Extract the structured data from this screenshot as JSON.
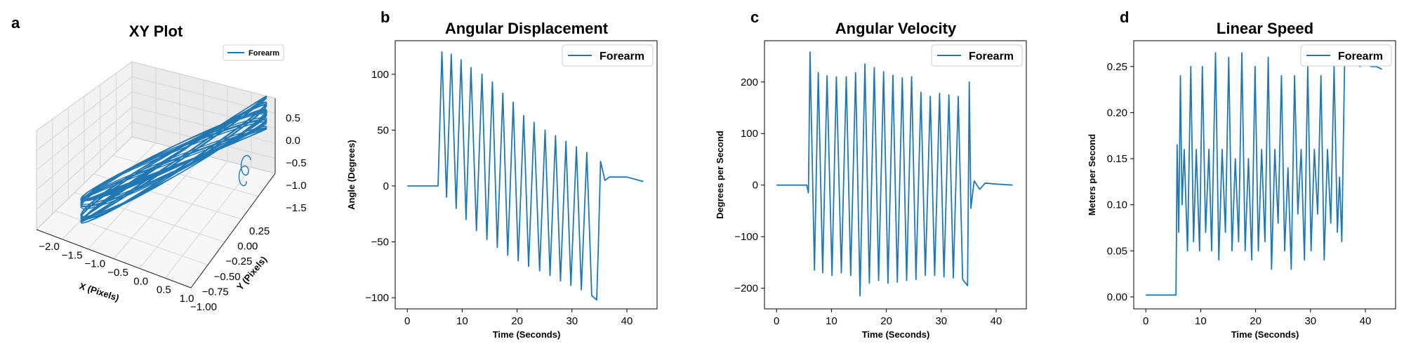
{
  "chart_data": [
    {
      "panel": "a",
      "type": "line",
      "title": "XY Plot",
      "xlabel": "X (Pixels)",
      "ylabel": "Y (Pixels)",
      "xticks": [
        "−2.0",
        "−1.5",
        "−1.0",
        "−0.5",
        "0.0",
        "0.5",
        "1.0"
      ],
      "yticks": [
        "0.25",
        "0.00",
        "−0.25",
        "−0.50",
        "−0.75",
        "−1.00"
      ],
      "zticks": [
        "0.5",
        "0.0",
        "−0.5",
        "−1.0",
        "−1.5"
      ],
      "xlim": [
        -2.0,
        1.0
      ],
      "ylim": [
        -1.0,
        0.25
      ],
      "zlim": [
        -1.5,
        0.5
      ],
      "series": [
        {
          "name": "Forearm",
          "color": "#1f77b4"
        }
      ],
      "legend": "top-right",
      "grid": true,
      "projection": "3d"
    },
    {
      "panel": "b",
      "type": "line",
      "title": "Angular Displacement",
      "xlabel": "Time (Seconds)",
      "ylabel": "Angle (Degrees)",
      "xlim": [
        -2.2,
        45.5
      ],
      "ylim": [
        -110,
        130
      ],
      "xticks": [
        0,
        10,
        20,
        30,
        40
      ],
      "yticks": [
        -100,
        -50,
        0,
        50,
        100
      ],
      "legend": "top-right",
      "series": [
        {
          "name": "Forearm",
          "color": "#1f77b4",
          "x": [
            0,
            5.6,
            6.3,
            7.15,
            8,
            8.9,
            9.8,
            10.7,
            11.6,
            12.6,
            13.6,
            14.5,
            15.5,
            16.4,
            17.4,
            18.3,
            19.3,
            20.2,
            21.2,
            22.1,
            23.1,
            24.1,
            25.1,
            26.0,
            27.0,
            27.9,
            28.9,
            29.8,
            30.8,
            31.7,
            32.7,
            33.6,
            34.5,
            34.8,
            35.2,
            36,
            36.8,
            38,
            40,
            41.5,
            43
          ],
          "y": [
            0,
            0,
            120,
            -10,
            118,
            -20,
            113,
            -30,
            106,
            -40,
            100,
            -48,
            93,
            -55,
            83,
            -62,
            75,
            -67,
            63,
            -72,
            57,
            -76,
            50,
            -80,
            45,
            -85,
            40,
            -89,
            35,
            -93,
            30,
            -98,
            -102,
            -55,
            22,
            5,
            8,
            8,
            8,
            6,
            4
          ]
        }
      ]
    },
    {
      "panel": "c",
      "type": "line",
      "title": "Angular Velocity",
      "xlabel": "Time (Seconds)",
      "ylabel": "Degrees per Second",
      "xlim": [
        -2.2,
        45.5
      ],
      "ylim": [
        -240,
        280
      ],
      "xticks": [
        0,
        10,
        20,
        30,
        40
      ],
      "yticks": [
        -200,
        -100,
        0,
        100,
        200
      ],
      "legend": "top-right",
      "series": [
        {
          "name": "Forearm",
          "color": "#1f77b4",
          "x": [
            0,
            3,
            5.5,
            5.8,
            6.1,
            6.9,
            7.6,
            8.4,
            9.2,
            10.1,
            10.9,
            11.8,
            12.7,
            13.5,
            14.4,
            15.2,
            16.1,
            16.9,
            17.8,
            18.6,
            19.5,
            20.3,
            21.2,
            22.0,
            22.9,
            23.7,
            24.6,
            25.4,
            26.3,
            27.1,
            28.0,
            28.8,
            29.7,
            30.5,
            31.4,
            32.2,
            33.1,
            33.9,
            34.8,
            35.1,
            35.4,
            36,
            37,
            38,
            40,
            43
          ],
          "y": [
            0,
            0,
            0,
            -15,
            258,
            -165,
            218,
            -170,
            212,
            -175,
            210,
            -170,
            210,
            -175,
            218,
            -215,
            235,
            -190,
            228,
            -185,
            220,
            -190,
            213,
            -188,
            208,
            -185,
            210,
            -183,
            180,
            -175,
            172,
            -175,
            178,
            -178,
            175,
            -180,
            172,
            -183,
            -195,
            200,
            -45,
            8,
            -8,
            4,
            2,
            0
          ]
        }
      ]
    },
    {
      "panel": "d",
      "type": "line",
      "title": "Linear Speed",
      "xlabel": "Time (Seconds)",
      "ylabel": "Meters per Second",
      "xlim": [
        -2.2,
        45.5
      ],
      "ylim": [
        -0.013,
        0.278
      ],
      "xticks": [
        0,
        10,
        20,
        30,
        40
      ],
      "yticks": [
        0.0,
        0.05,
        0.1,
        0.15,
        0.2,
        0.25
      ],
      "legend": "top-right",
      "series": [
        {
          "name": "Forearm",
          "color": "#1f77b4",
          "x": [
            0,
            3,
            5.5,
            5.7,
            6.0,
            6.3,
            6.6,
            7,
            7.6,
            8.2,
            8.7,
            9.2,
            9.8,
            10.3,
            10.9,
            11.5,
            12,
            12.7,
            13.3,
            13.9,
            14.5,
            15.1,
            15.7,
            16.3,
            16.9,
            17.5,
            18.1,
            18.7,
            19.3,
            19.9,
            20.5,
            21.1,
            21.7,
            22.3,
            22.9,
            23.5,
            24.1,
            24.7,
            25.3,
            25.9,
            26.5,
            27.1,
            27.7,
            28.3,
            28.9,
            29.5,
            30.1,
            30.7,
            31.3,
            31.9,
            32.5,
            33.1,
            33.7,
            34.3,
            34.9,
            35.3,
            35.7,
            36.2,
            37,
            38,
            39,
            40,
            41,
            42,
            43
          ],
          "y": [
            0.002,
            0.002,
            0.002,
            0.165,
            0.07,
            0.24,
            0.1,
            0.16,
            0.05,
            0.25,
            0.06,
            0.16,
            0.05,
            0.25,
            0.07,
            0.16,
            0.05,
            0.265,
            0.04,
            0.16,
            0.07,
            0.26,
            0.05,
            0.15,
            0.06,
            0.265,
            0.05,
            0.15,
            0.04,
            0.25,
            0.05,
            0.16,
            0.06,
            0.26,
            0.03,
            0.16,
            0.08,
            0.24,
            0.05,
            0.14,
            0.03,
            0.24,
            0.09,
            0.16,
            0.04,
            0.25,
            0.05,
            0.16,
            0.09,
            0.24,
            0.04,
            0.16,
            0.08,
            0.25,
            0.07,
            0.13,
            0.06,
            0.25,
            0.26,
            0.255,
            0.25,
            0.255,
            0.25,
            0.25,
            0.247
          ]
        }
      ]
    }
  ]
}
